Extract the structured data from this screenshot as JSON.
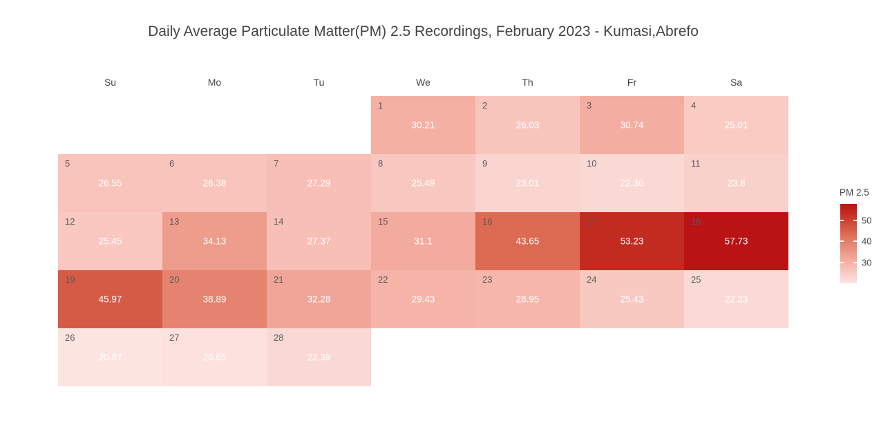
{
  "title": "Daily Average Particulate Matter(PM) 2.5 Recordings, February 2023 - Kumasi,Abrefo",
  "weekday_headers": [
    "Su",
    "Mo",
    "Tu",
    "We",
    "Th",
    "Fr",
    "Sa"
  ],
  "legend": {
    "title": "PM 2.5",
    "ticks": [
      50,
      40,
      30
    ]
  },
  "chart_data": {
    "type": "heatmap",
    "subtype": "calendar",
    "title": "Daily Average Particulate Matter(PM) 2.5 Recordings, February 2023 - Kumasi,Abrefo",
    "month": "February 2023",
    "location": "Kumasi,Abrefo",
    "weekdays": [
      "Su",
      "Mo",
      "Tu",
      "We",
      "Th",
      "Fr",
      "Sa"
    ],
    "value_label": "PM 2.5",
    "value_range": [
      20.07,
      57.73
    ],
    "legend_ticks": [
      50,
      40,
      30
    ],
    "weeks": [
      [
        null,
        null,
        null,
        {
          "day": 1,
          "value": 30.21
        },
        {
          "day": 2,
          "value": 26.03
        },
        {
          "day": 3,
          "value": 30.74
        },
        {
          "day": 4,
          "value": 25.01
        }
      ],
      [
        {
          "day": 5,
          "value": 26.55
        },
        {
          "day": 6,
          "value": 26.38
        },
        {
          "day": 7,
          "value": 27.29
        },
        {
          "day": 8,
          "value": 25.49
        },
        {
          "day": 9,
          "value": 23.01
        },
        {
          "day": 10,
          "value": 22.36
        },
        {
          "day": 11,
          "value": 23.8
        }
      ],
      [
        {
          "day": 12,
          "value": 25.45
        },
        {
          "day": 13,
          "value": 34.13
        },
        {
          "day": 14,
          "value": 27.37
        },
        {
          "day": 15,
          "value": 31.1
        },
        {
          "day": 16,
          "value": 43.65
        },
        {
          "day": 17,
          "value": 53.23
        },
        {
          "day": 18,
          "value": 57.73
        }
      ],
      [
        {
          "day": 19,
          "value": 45.97
        },
        {
          "day": 20,
          "value": 38.89
        },
        {
          "day": 21,
          "value": 32.28
        },
        {
          "day": 22,
          "value": 29.43
        },
        {
          "day": 23,
          "value": 28.95
        },
        {
          "day": 24,
          "value": 25.43
        },
        {
          "day": 25,
          "value": 22.23
        }
      ],
      [
        {
          "day": 26,
          "value": 20.07
        },
        {
          "day": 27,
          "value": 20.65
        },
        {
          "day": 28,
          "value": 22.39
        },
        null,
        null,
        null,
        null
      ]
    ],
    "colorscale": [
      {
        "value": 20.07,
        "color": "#fce4e1"
      },
      {
        "value": 30.21,
        "color": "#f5b0a4"
      },
      {
        "value": 43.65,
        "color": "#dd6a53"
      },
      {
        "value": 53.23,
        "color": "#c22b20"
      },
      {
        "value": 57.73,
        "color": "#b91316"
      }
    ],
    "text_colors": {
      "day_number": "#5a5a5a",
      "value_text": "#ffffff",
      "axis_text": "#444444"
    }
  }
}
